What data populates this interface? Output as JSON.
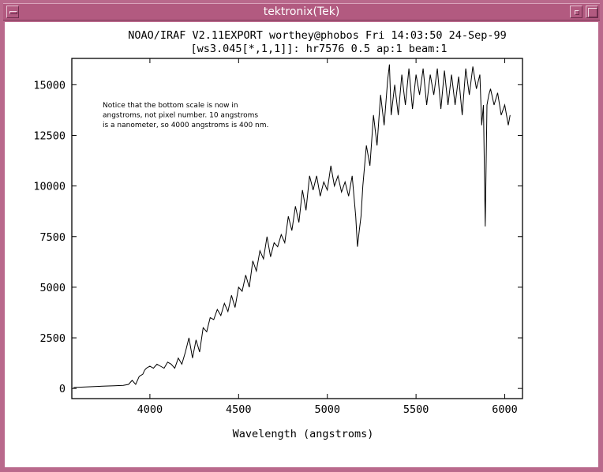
{
  "window": {
    "title": "tektronix(Tek)"
  },
  "chart_data": {
    "type": "line",
    "title": "NOAO/IRAF V2.11EXPORT worthey@phobos Fri 14:03:50 24-Sep-99",
    "subtitle": "[ws3.045[*,1,1]]: hr7576 0.5 ap:1 beam:1",
    "xlabel": "Wavelength (angstroms)",
    "ylabel": "",
    "xlim": [
      3560,
      6100
    ],
    "ylim": [
      -500,
      16300
    ],
    "xticks": [
      4000,
      4500,
      5000,
      5500,
      6000
    ],
    "yticks": [
      0,
      2500,
      5000,
      7500,
      10000,
      12500,
      15000
    ],
    "annotation": [
      "Notice that the bottom scale is now in",
      "angstroms, not pixel number. 10 angstroms",
      "is a nanometer, so 4000 angstroms is 400 nm."
    ],
    "series": [
      {
        "x": [
          3570,
          3600,
          3650,
          3700,
          3750,
          3800,
          3850,
          3880,
          3900,
          3920,
          3940,
          3960,
          3970,
          3980,
          4000,
          4020,
          4040,
          4060,
          4080,
          4100,
          4120,
          4140,
          4160,
          4180,
          4200,
          4220,
          4240,
          4260,
          4280,
          4300,
          4320,
          4340,
          4360,
          4380,
          4400,
          4420,
          4440,
          4460,
          4480,
          4500,
          4520,
          4540,
          4560,
          4580,
          4600,
          4620,
          4640,
          4660,
          4680,
          4700,
          4720,
          4740,
          4760,
          4780,
          4800,
          4820,
          4840,
          4860,
          4880,
          4900,
          4920,
          4940,
          4960,
          4980,
          5000,
          5020,
          5040,
          5060,
          5080,
          5100,
          5120,
          5140,
          5160,
          5170,
          5180,
          5190,
          5200,
          5220,
          5240,
          5260,
          5280,
          5300,
          5320,
          5340,
          5350,
          5360,
          5380,
          5400,
          5420,
          5440,
          5460,
          5480,
          5500,
          5520,
          5540,
          5560,
          5580,
          5600,
          5620,
          5640,
          5660,
          5680,
          5700,
          5720,
          5740,
          5760,
          5780,
          5800,
          5820,
          5840,
          5860,
          5870,
          5880,
          5890,
          5900,
          5910,
          5920,
          5940,
          5960,
          5980,
          6000,
          6020,
          6030
        ],
        "values": [
          50,
          60,
          80,
          100,
          120,
          130,
          150,
          200,
          400,
          200,
          600,
          700,
          900,
          1000,
          1100,
          1000,
          1200,
          1100,
          1000,
          1300,
          1200,
          1000,
          1500,
          1200,
          1800,
          2500,
          1500,
          2400,
          1800,
          3000,
          2800,
          3500,
          3400,
          3900,
          3600,
          4200,
          3800,
          4600,
          4000,
          5000,
          4800,
          5600,
          5000,
          6300,
          5800,
          6800,
          6400,
          7500,
          6500,
          7200,
          7000,
          7600,
          7200,
          8500,
          7800,
          9000,
          8200,
          9800,
          8800,
          10500,
          9800,
          10500,
          9500,
          10200,
          9800,
          11000,
          10000,
          10500,
          9700,
          10200,
          9500,
          10500,
          8500,
          7000,
          7800,
          8500,
          10000,
          12000,
          11000,
          13500,
          12000,
          14500,
          13000,
          15200,
          16000,
          13500,
          15000,
          13500,
          15500,
          14000,
          15800,
          13800,
          15500,
          14500,
          15800,
          14000,
          15500,
          14500,
          15800,
          13800,
          15700,
          14000,
          15500,
          14000,
          15400,
          13500,
          15800,
          14500,
          15900,
          14800,
          15500,
          13000,
          14000,
          8000,
          14000,
          14500,
          14800,
          14000,
          14600,
          13500,
          14000,
          13000,
          13500
        ]
      }
    ]
  }
}
